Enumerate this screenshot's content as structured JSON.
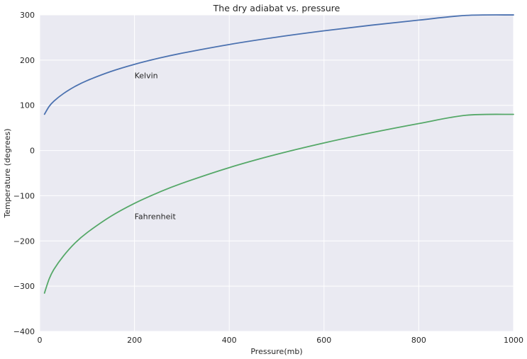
{
  "chart_data": {
    "type": "line",
    "title": "The dry adiabat vs. pressure",
    "xlabel": "Pressure(mb)",
    "ylabel": "Temperature (degrees)",
    "xlim": [
      0,
      1000
    ],
    "ylim": [
      -400,
      300
    ],
    "x_ticks": [
      0,
      200,
      400,
      600,
      800,
      1000
    ],
    "y_ticks": [
      -400,
      -300,
      -200,
      -100,
      0,
      100,
      200,
      300
    ],
    "x_tick_labels": [
      "0",
      "200",
      "400",
      "600",
      "800",
      "1000"
    ],
    "y_tick_labels": [
      "−400",
      "−300",
      "−200",
      "−100",
      "0",
      "100",
      "200",
      "300"
    ],
    "grid": true,
    "background": "#eaeaf2",
    "series": [
      {
        "color": "#4c72b0",
        "x": [
          10,
          20,
          30,
          50,
          75,
          100,
          150,
          200,
          250,
          300,
          400,
          500,
          600,
          700,
          800,
          900,
          1000
        ],
        "y": [
          80.2,
          97.7,
          109.3,
          125.9,
          142.0,
          154.7,
          174.7,
          190.6,
          203.8,
          215.2,
          234.5,
          250.7,
          264.7,
          277.2,
          288.4,
          298.8,
          299.9
        ]
      },
      {
        "color": "#55a868",
        "x": [
          10,
          20,
          30,
          50,
          75,
          100,
          150,
          200,
          250,
          300,
          400,
          500,
          600,
          700,
          800,
          900,
          1000
        ],
        "y": [
          -315.3,
          -283.8,
          -262.8,
          -233.3,
          -204.1,
          -181.6,
          -145.5,
          -116.8,
          -93.1,
          -72.6,
          -37.8,
          -8.5,
          16.8,
          39.3,
          59.6,
          78.0,
          80.0
        ]
      }
    ],
    "annotations": [
      {
        "text": "Kelvin",
        "x": 200,
        "y": 160
      },
      {
        "text": "Fahrenheit",
        "x": 200,
        "y": -152
      }
    ]
  }
}
